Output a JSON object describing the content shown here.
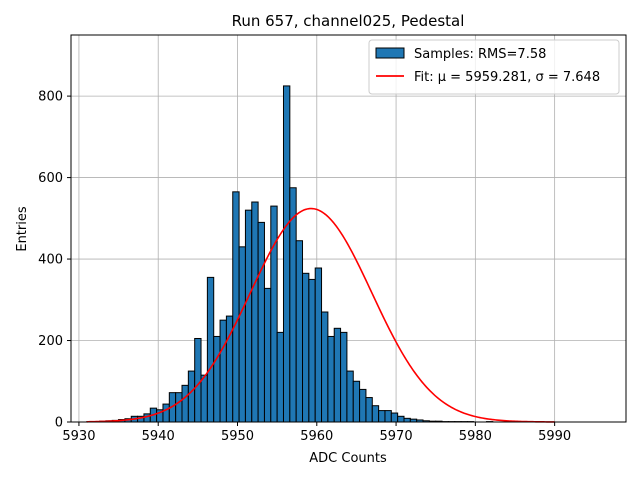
{
  "chart_data": {
    "type": "bar",
    "title": "Run 657, channel025, Pedestal",
    "xlabel": "ADC Counts",
    "ylabel": "Entries",
    "xlim": [
      5929,
      5999
    ],
    "ylim": [
      0,
      950
    ],
    "xticks": [
      5930,
      5940,
      5950,
      5960,
      5970,
      5980,
      5990
    ],
    "yticks": [
      0,
      200,
      400,
      600,
      800
    ],
    "grid": true,
    "legend_position": "top-right",
    "bin_width": 0.8,
    "bar_color": "#1f77b4",
    "fit_color": "#ff0000",
    "histogram": {
      "name": "Samples: RMS=7.58",
      "bin_starts": [
        5931.0,
        5931.8,
        5932.6,
        5933.4,
        5934.2,
        5935.0,
        5935.8,
        5936.6,
        5937.4,
        5938.2,
        5939.0,
        5939.8,
        5940.6,
        5941.4,
        5942.2,
        5943.0,
        5943.8,
        5944.6,
        5945.4,
        5946.2,
        5947.0,
        5947.8,
        5948.6,
        5949.4,
        5950.2,
        5951.0,
        5951.8,
        5952.6,
        5953.4,
        5954.2,
        5955.0,
        5955.8,
        5956.6,
        5957.4,
        5958.2,
        5959.0,
        5959.8,
        5960.6,
        5961.4,
        5962.2,
        5963.0,
        5963.8,
        5964.6,
        5965.4,
        5966.2,
        5967.0,
        5967.8,
        5968.6,
        5969.4,
        5970.2,
        5971.0,
        5971.8,
        5972.6,
        5973.4,
        5974.2,
        5975.0,
        5975.8,
        5976.6,
        5977.4,
        5978.2,
        5979.0,
        5979.8,
        5980.6,
        5981.4,
        5982.2,
        5983.0,
        5983.8,
        5984.6,
        5985.4,
        5986.2,
        5987.0,
        5987.8,
        5988.6,
        5989.4
      ],
      "counts": [
        1,
        1,
        2,
        3,
        4,
        6,
        8,
        14,
        14,
        20,
        34,
        30,
        44,
        72,
        72,
        90,
        125,
        205,
        115,
        355,
        210,
        250,
        260,
        565,
        430,
        520,
        540,
        490,
        328,
        530,
        220,
        825,
        575,
        445,
        365,
        350,
        378,
        270,
        210,
        230,
        220,
        125,
        100,
        80,
        60,
        40,
        28,
        28,
        22,
        14,
        9,
        7,
        5,
        3,
        2,
        2,
        1,
        1,
        1,
        1,
        1,
        0,
        0,
        1,
        0,
        0,
        0,
        0,
        0,
        0,
        0,
        0,
        0,
        0
      ]
    },
    "fit": {
      "name": "Fit: μ = 5959.281, σ = 7.648",
      "mu": 5959.281,
      "sigma": 7.648,
      "amplitude": 524,
      "x_range": [
        5931,
        5990
      ]
    }
  }
}
